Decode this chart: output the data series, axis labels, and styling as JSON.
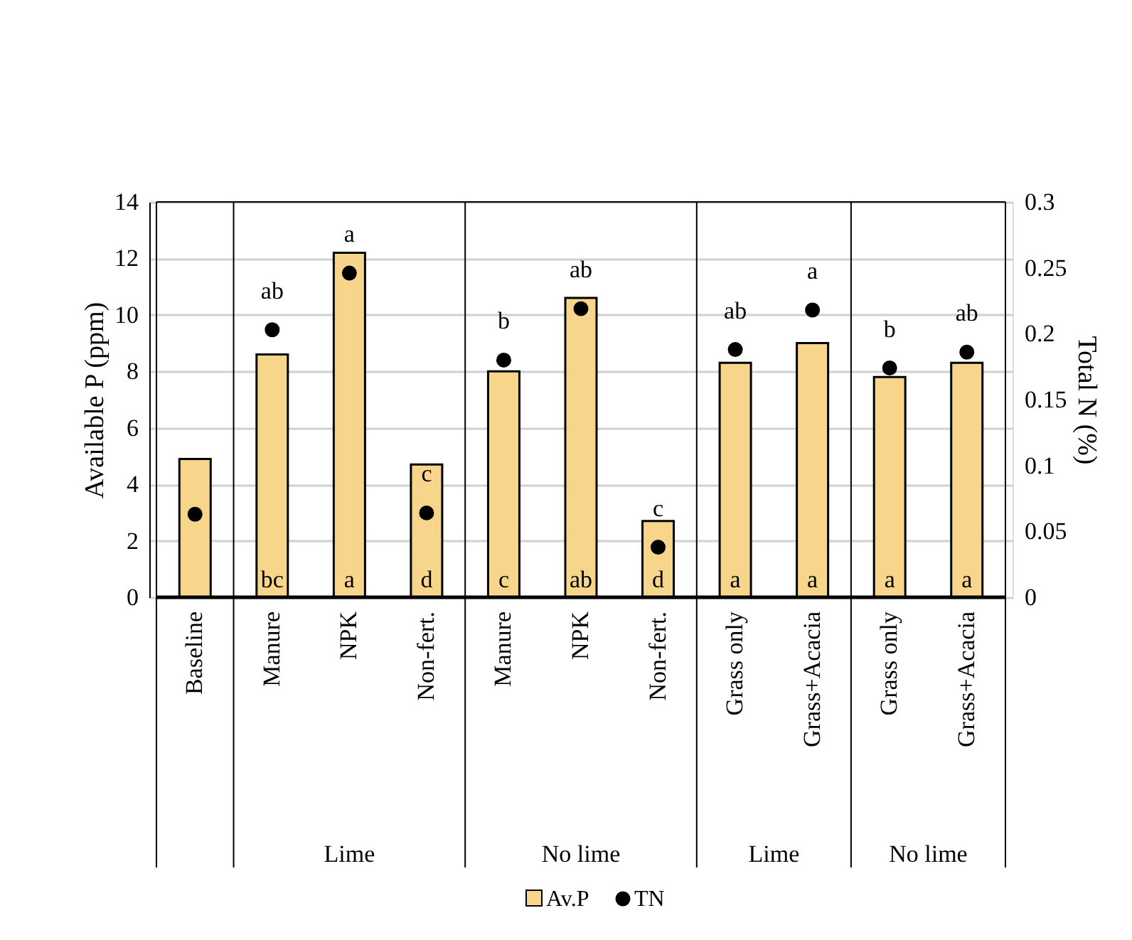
{
  "chart_data": {
    "type": "bar",
    "ylabel": "Available P (ppm)",
    "y2label": "Total N (%)",
    "categories": [
      "Baseline",
      "Manure",
      "NPK",
      "Non-fert.",
      "Manure",
      "NPK",
      "Non-fert.",
      "Grass only",
      "Grass+Acacia",
      "Grass only",
      "Grass+Acacia"
    ],
    "series": [
      {
        "name": "Av.P",
        "color": "#f7d68c",
        "values": [
          4.9,
          8.6,
          12.2,
          4.7,
          8.0,
          10.6,
          2.7,
          8.3,
          9.0,
          7.8,
          8.3
        ],
        "value_labels": [
          null,
          "bc",
          "a",
          "d",
          "c",
          "ab",
          "d",
          "a",
          "a",
          "a",
          "a"
        ]
      },
      {
        "name": "TN",
        "type": "scatter",
        "axis": "y2",
        "color": "#000000",
        "marker": "circle",
        "values": [
          0.063,
          0.203,
          0.246,
          0.064,
          0.18,
          0.219,
          0.038,
          0.188,
          0.218,
          0.174,
          0.186
        ],
        "value_labels": [
          null,
          "ab",
          "a",
          "c",
          "b",
          "ab",
          "c",
          "ab",
          "a",
          "b",
          "ab"
        ]
      }
    ],
    "ylim": [
      0,
      14
    ],
    "yticks": [
      0,
      2,
      4,
      6,
      8,
      10,
      12,
      14
    ],
    "y2lim": [
      0,
      0.3
    ],
    "y2ticks": [
      0,
      0.05,
      0.1,
      0.15,
      0.2,
      0.25,
      0.3
    ],
    "grid": "y",
    "legend": "bottom",
    "annotations": [
      "Lime",
      "No lime",
      "Lime",
      "No lime"
    ]
  }
}
